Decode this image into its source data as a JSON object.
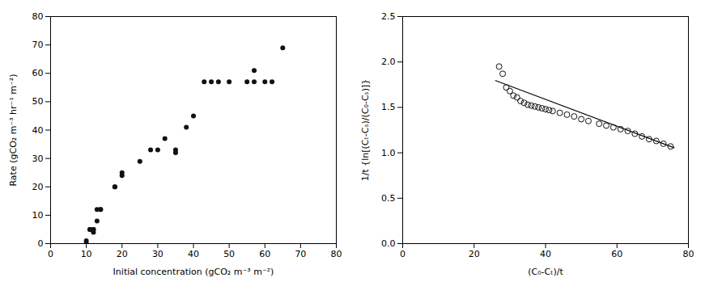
{
  "chart_data": [
    {
      "type": "scatter",
      "xlabel": "Initial concentration (gCO₂ m⁻³ m⁻²)",
      "ylabel": "Rate (gCO₂ m⁻³ hr⁻¹ m⁻²)",
      "series": [
        {
          "type": "scatter",
          "marker": "circle",
          "color": "#111111",
          "x": [
            10,
            10,
            10,
            11,
            11,
            12,
            12,
            12,
            13,
            13,
            14,
            14,
            18,
            18,
            20,
            20,
            25,
            28,
            30,
            32,
            35,
            35,
            38,
            40,
            43,
            45,
            47,
            50,
            55,
            57,
            57,
            60,
            62,
            65
          ],
          "values": [
            0,
            0,
            1,
            5,
            5,
            4,
            5,
            5,
            8,
            12,
            12,
            12,
            20,
            20,
            24,
            25,
            29,
            33,
            33,
            37,
            32,
            33,
            41,
            45,
            57,
            57,
            57,
            57,
            57,
            61,
            57,
            57,
            57,
            69
          ]
        }
      ],
      "xlim": [
        0,
        80
      ],
      "ylim": [
        0,
        80
      ],
      "xticks": [
        0,
        10,
        20,
        30,
        40,
        50,
        60,
        70,
        80
      ],
      "yticks": [
        0,
        10,
        20,
        30,
        40,
        50,
        60,
        70,
        80
      ],
      "grid": false
    },
    {
      "type": "scatter",
      "xlabel": "(C₀-Cₜ)/t",
      "ylabel": "1/t {ln[(Cₜ-Cₛ)/(C₀-Cₛ)]}",
      "series": [
        {
          "type": "line",
          "color": "#000000",
          "x": [
            26,
            76
          ],
          "values": [
            1.795,
            1.055
          ]
        },
        {
          "type": "scatter",
          "marker": "open_circle",
          "color": "#111111",
          "x": [
            27,
            28,
            29,
            30,
            31,
            32,
            33,
            34,
            35,
            36,
            37,
            38,
            39,
            40,
            41,
            42,
            44,
            46,
            48,
            50,
            52,
            55,
            57,
            59,
            61,
            63,
            65,
            67,
            69,
            71,
            73,
            75
          ],
          "values": [
            1.95,
            1.87,
            1.72,
            1.68,
            1.63,
            1.61,
            1.57,
            1.55,
            1.53,
            1.52,
            1.51,
            1.5,
            1.49,
            1.48,
            1.47,
            1.46,
            1.44,
            1.42,
            1.4,
            1.37,
            1.35,
            1.32,
            1.3,
            1.28,
            1.26,
            1.24,
            1.21,
            1.18,
            1.15,
            1.13,
            1.1,
            1.07
          ]
        }
      ],
      "xlim": [
        0,
        80
      ],
      "ylim": [
        0,
        2.5
      ],
      "xticks": [
        0,
        20,
        40,
        60,
        80
      ],
      "yticks": [
        {
          "value": 0,
          "label": "0.0"
        },
        {
          "value": 0.5,
          "label": "0.5"
        },
        {
          "value": 1,
          "label": "1.0"
        },
        {
          "value": 1.5,
          "label": "1.5"
        },
        {
          "value": 2,
          "label": "2.0"
        },
        {
          "value": 2.5,
          "label": "2.5"
        }
      ],
      "grid": false
    }
  ]
}
